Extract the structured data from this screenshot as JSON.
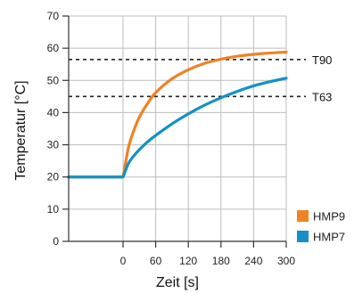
{
  "chart_data": {
    "type": "line",
    "xlabel": "Zeit [s]",
    "ylabel": "Temperatur [°C]",
    "xlim": [
      -100,
      300
    ],
    "ylim": [
      0,
      70
    ],
    "x_ticks": [
      0,
      60,
      120,
      180,
      240,
      300
    ],
    "y_ticks": [
      0,
      10,
      20,
      30,
      40,
      50,
      60,
      70
    ],
    "grid": "vertical and horizontal",
    "legend_position": "bottom-right",
    "series": [
      {
        "name": "HMP9",
        "color": "#EF8223",
        "x": [
          -100,
          0,
          10,
          20,
          30,
          45,
          60,
          90,
          120,
          150,
          180,
          210,
          240,
          270,
          300
        ],
        "y": [
          20,
          20,
          29.2,
          34.5,
          38.6,
          42.8,
          46.2,
          50.5,
          53.3,
          55.3,
          56.6,
          57.5,
          58.1,
          58.5,
          58.8
        ]
      },
      {
        "name": "HMP7",
        "color": "#1391C6",
        "x": [
          -100,
          0,
          10,
          20,
          30,
          45,
          60,
          90,
          120,
          150,
          180,
          210,
          240,
          270,
          300
        ],
        "y": [
          20,
          20,
          24.2,
          26.6,
          28.5,
          30.9,
          32.9,
          36.5,
          39.6,
          42.3,
          44.6,
          46.6,
          48.3,
          49.6,
          50.7
        ]
      }
    ],
    "reference_lines": [
      {
        "label": "T90",
        "y": 56.5
      },
      {
        "label": "T63",
        "y": 45
      }
    ]
  }
}
